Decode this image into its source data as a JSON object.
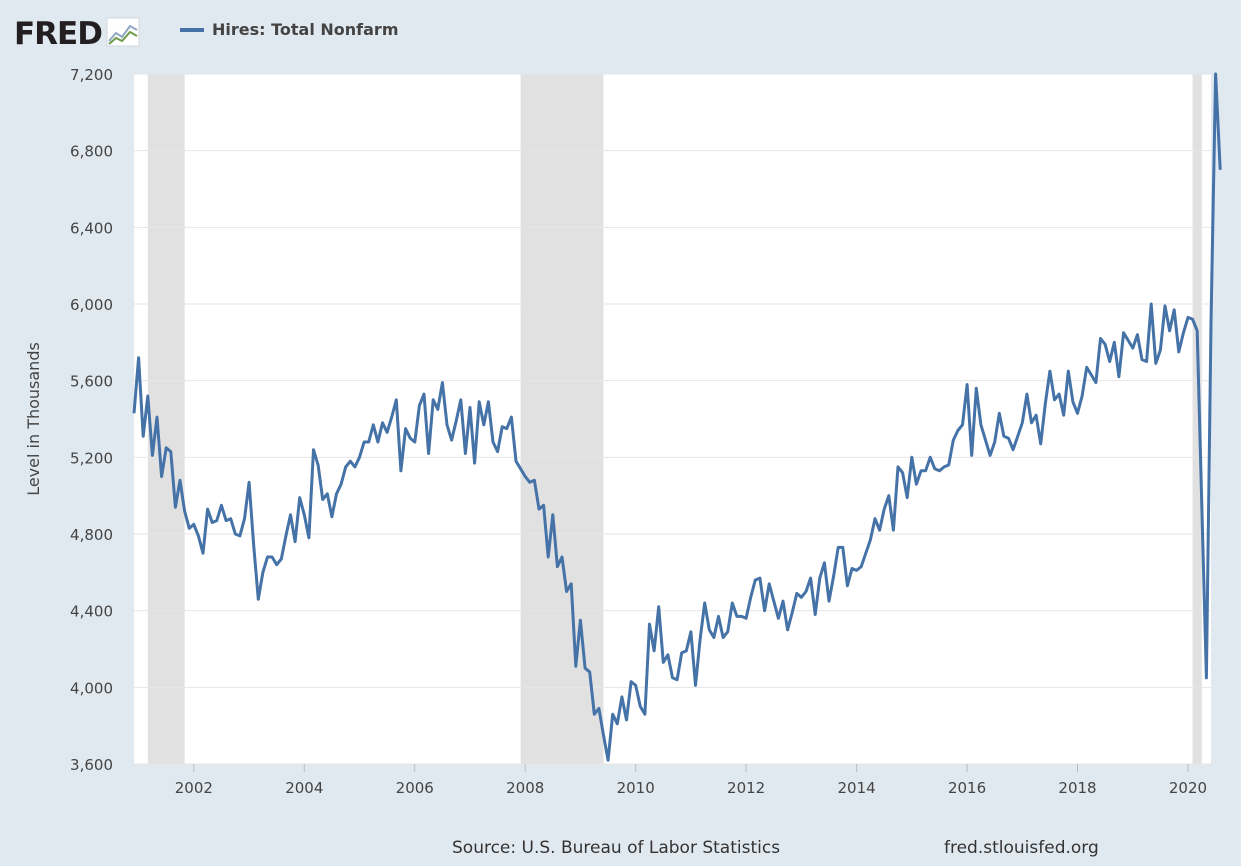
{
  "header": {
    "logo_text": "FRED",
    "logo_icon": "fred-chart-icon"
  },
  "footer": {
    "source": "Source: U.S. Bureau of Labor Statistics",
    "site": "fred.stlouisfed.org"
  },
  "colors": {
    "background": "#e1e9f0",
    "plot": "#ffffff",
    "series": "#4572a7",
    "recession": "#e1e1e1"
  },
  "chart_data": {
    "type": "line",
    "title": "",
    "xlabel": "",
    "ylabel": "Level in Thousands",
    "ylim": [
      3600,
      7200
    ],
    "xlim": [
      "2000-12",
      "2020-06"
    ],
    "yticks": [
      3600,
      4000,
      4400,
      4800,
      5200,
      5600,
      6000,
      6400,
      6800,
      7200
    ],
    "ytick_labels": [
      "3,600",
      "4,000",
      "4,400",
      "4,800",
      "5,200",
      "5,600",
      "6,000",
      "6,400",
      "6,800",
      "7,200"
    ],
    "xticks": [
      "2002",
      "2004",
      "2006",
      "2008",
      "2010",
      "2012",
      "2014",
      "2016",
      "2018",
      "2020"
    ],
    "grid": "horizontal",
    "legend": "top-left",
    "recessions": [
      {
        "start": "2001-03",
        "end": "2001-11"
      },
      {
        "start": "2007-12",
        "end": "2009-06"
      },
      {
        "start": "2020-02",
        "end": "2020-04"
      }
    ],
    "series": [
      {
        "name": "Hires: Total Nonfarm",
        "start": "2000-12",
        "frequency": "monthly",
        "values": [
          5430,
          5720,
          5310,
          5520,
          5210,
          5410,
          5100,
          5250,
          5230,
          4940,
          5080,
          4920,
          4830,
          4850,
          4790,
          4700,
          4930,
          4860,
          4870,
          4950,
          4870,
          4880,
          4800,
          4790,
          4880,
          5070,
          4740,
          4460,
          4600,
          4680,
          4680,
          4640,
          4670,
          4790,
          4900,
          4760,
          4990,
          4900,
          4780,
          5240,
          5160,
          4980,
          5010,
          4890,
          5010,
          5060,
          5150,
          5180,
          5150,
          5200,
          5280,
          5280,
          5370,
          5280,
          5380,
          5330,
          5410,
          5500,
          5130,
          5350,
          5300,
          5280,
          5470,
          5530,
          5220,
          5500,
          5450,
          5590,
          5370,
          5290,
          5390,
          5500,
          5220,
          5460,
          5170,
          5490,
          5370,
          5490,
          5280,
          5230,
          5360,
          5350,
          5410,
          5180,
          5140,
          5100,
          5070,
          5080,
          4930,
          4950,
          4680,
          4900,
          4630,
          4680,
          4500,
          4540,
          4110,
          4350,
          4100,
          4080,
          3860,
          3890,
          3750,
          3620,
          3860,
          3810,
          3950,
          3830,
          4030,
          4010,
          3900,
          3860,
          4330,
          4190,
          4420,
          4130,
          4170,
          4050,
          4040,
          4180,
          4190,
          4290,
          4010,
          4250,
          4440,
          4300,
          4260,
          4370,
          4260,
          4290,
          4440,
          4370,
          4370,
          4360,
          4470,
          4560,
          4570,
          4400,
          4540,
          4450,
          4360,
          4450,
          4300,
          4390,
          4490,
          4470,
          4500,
          4570,
          4380,
          4570,
          4650,
          4450,
          4580,
          4730,
          4730,
          4530,
          4620,
          4610,
          4630,
          4700,
          4770,
          4880,
          4820,
          4930,
          5000,
          4820,
          5150,
          5120,
          4990,
          5200,
          5060,
          5130,
          5130,
          5200,
          5140,
          5130,
          5150,
          5160,
          5290,
          5340,
          5370,
          5580,
          5210,
          5560,
          5370,
          5290,
          5210,
          5280,
          5430,
          5310,
          5300,
          5240,
          5310,
          5380,
          5530,
          5380,
          5420,
          5270,
          5480,
          5650,
          5500,
          5530,
          5420,
          5650,
          5490,
          5430,
          5520,
          5670,
          5630,
          5590,
          5820,
          5790,
          5700,
          5800,
          5620,
          5850,
          5810,
          5770,
          5840,
          5710,
          5700,
          6000,
          5690,
          5760,
          5990,
          5860,
          5970,
          5750,
          5850,
          5930,
          5920,
          5860,
          4950,
          4050,
          5900,
          7230,
          6700
        ]
      }
    ]
  }
}
